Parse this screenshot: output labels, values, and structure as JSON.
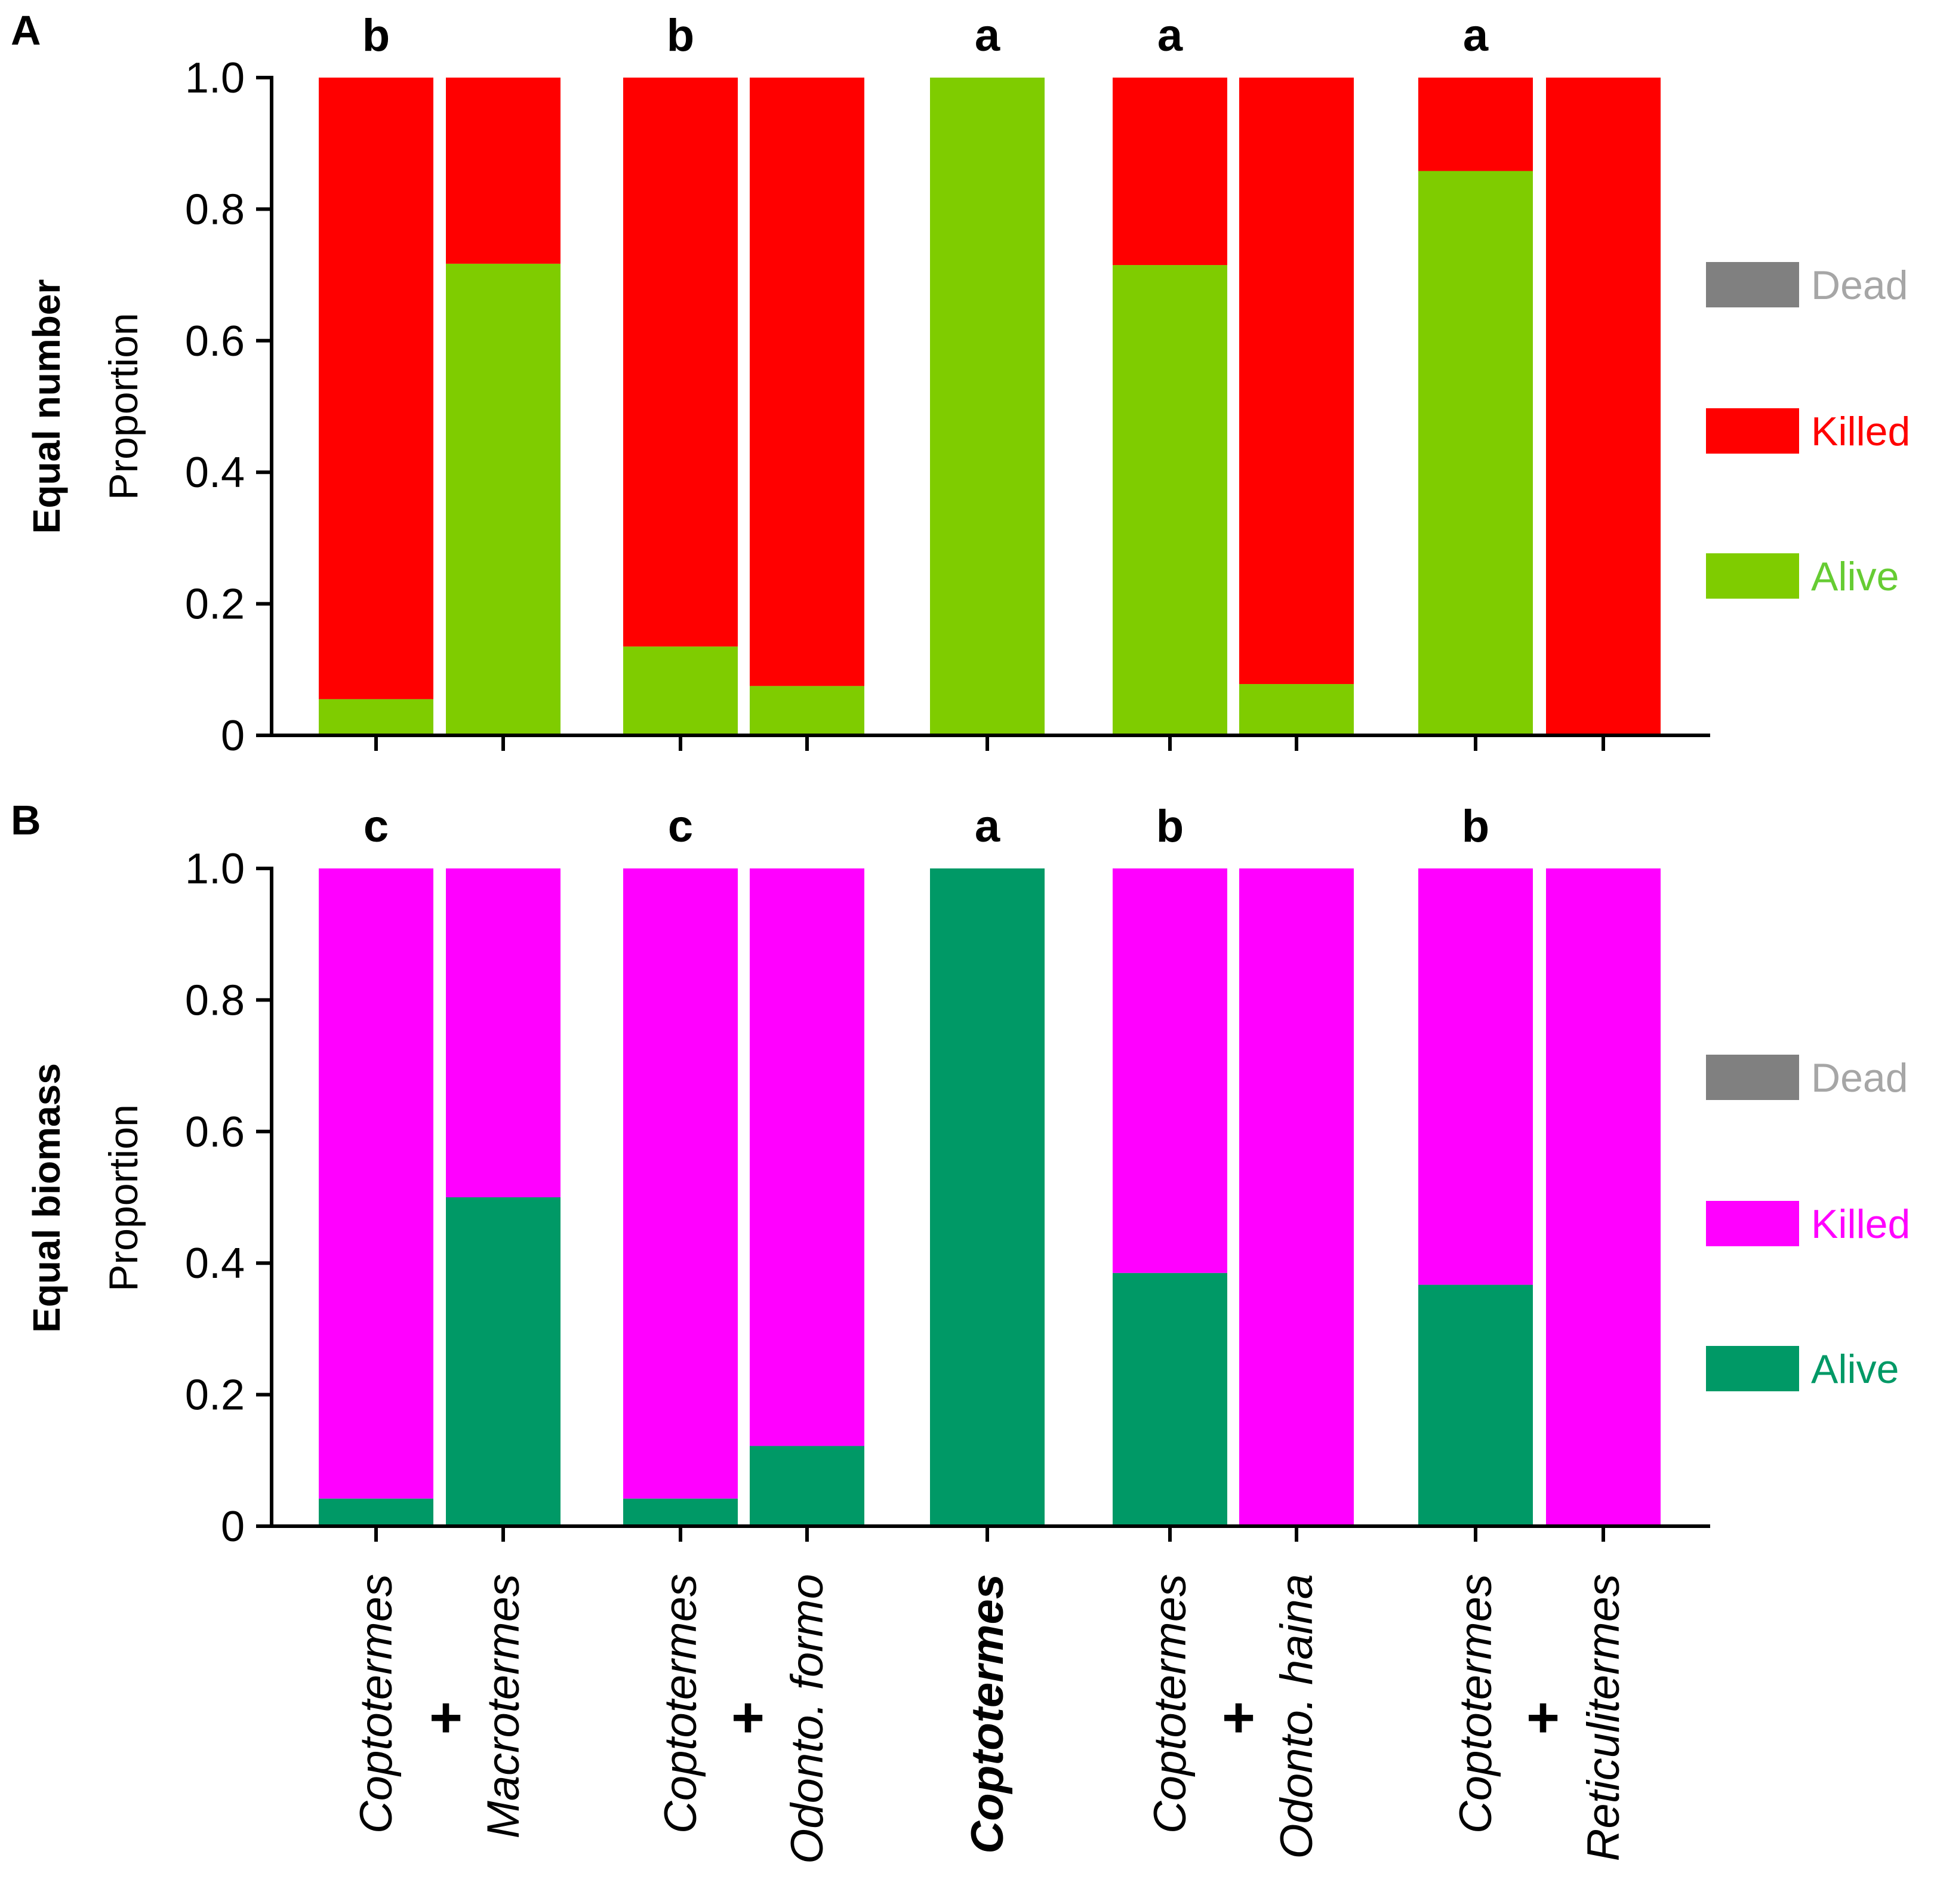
{
  "figure": {
    "categories": [
      {
        "name": "Coptotermes",
        "bold": false
      },
      {
        "name": "Macrotermes",
        "bold": false
      },
      {
        "name": "Coptotermes",
        "bold": false
      },
      {
        "name": "Odonto. formo",
        "bold": false
      },
      {
        "name": "Coptotermes",
        "bold": true
      },
      {
        "name": "Coptotermes",
        "bold": false
      },
      {
        "name": "Odonto. haina",
        "bold": false
      },
      {
        "name": "Coptotermes",
        "bold": false
      },
      {
        "name": "Reticulitermes",
        "bold": false
      }
    ],
    "plus_sign": "+"
  },
  "chart_data": [
    {
      "type": "bar",
      "stacked": true,
      "panel_label": "A",
      "title": "Equal number",
      "ylabel": "Proportion",
      "ylim": [
        0,
        1
      ],
      "yticks": [
        "0",
        "0.2",
        "0.4",
        "0.6",
        "0.8",
        "1.0"
      ],
      "ytick_values": [
        0,
        0.2,
        0.4,
        0.6,
        0.8,
        1.0
      ],
      "group_letters": [
        "b",
        "b",
        "a",
        "a",
        "a"
      ],
      "series": [
        {
          "name": "Alive",
          "color": "#7fcc00",
          "values": [
            0.055,
            0.717,
            0.135,
            0.075,
            1.0,
            0.715,
            0.078,
            0.858,
            0.0
          ]
        },
        {
          "name": "Killed",
          "color": "#ff0000",
          "values": [
            0.945,
            0.283,
            0.865,
            0.925,
            0.0,
            0.285,
            0.922,
            0.142,
            1.0
          ]
        },
        {
          "name": "Dead",
          "color": "#808080",
          "values": [
            0,
            0,
            0,
            0,
            0,
            0,
            0,
            0,
            0
          ]
        }
      ],
      "legend": [
        {
          "label": "Dead",
          "color": "#808080",
          "text_color": "#a6a6a6"
        },
        {
          "label": "Killed",
          "color": "#ff0000",
          "text_color": "#ff0000"
        },
        {
          "label": "Alive",
          "color": "#7fcc00",
          "text_color": "#66cc33"
        }
      ]
    },
    {
      "type": "bar",
      "stacked": true,
      "panel_label": "B",
      "title": "Equal biomass",
      "ylabel": "Proportion",
      "ylim": [
        0,
        1
      ],
      "yticks": [
        "0",
        "0.2",
        "0.4",
        "0.6",
        "0.8",
        "1.0"
      ],
      "ytick_values": [
        0,
        0.2,
        0.4,
        0.6,
        0.8,
        1.0
      ],
      "group_letters": [
        "c",
        "c",
        "a",
        "b",
        "b"
      ],
      "series": [
        {
          "name": "Alive",
          "color": "#009966",
          "values": [
            0.042,
            0.5,
            0.042,
            0.122,
            1.0,
            0.385,
            0.0,
            0.367,
            0.0
          ]
        },
        {
          "name": "Killed",
          "color": "#ff00ff",
          "values": [
            0.958,
            0.5,
            0.958,
            0.878,
            0.0,
            0.615,
            1.0,
            0.633,
            1.0
          ]
        },
        {
          "name": "Dead",
          "color": "#808080",
          "values": [
            0,
            0,
            0,
            0,
            0,
            0,
            0,
            0,
            0
          ]
        }
      ],
      "legend": [
        {
          "label": "Dead",
          "color": "#808080",
          "text_color": "#a6a6a6"
        },
        {
          "label": "Killed",
          "color": "#ff00ff",
          "text_color": "#ff00ff"
        },
        {
          "label": "Alive",
          "color": "#009966",
          "text_color": "#009966"
        }
      ]
    }
  ]
}
